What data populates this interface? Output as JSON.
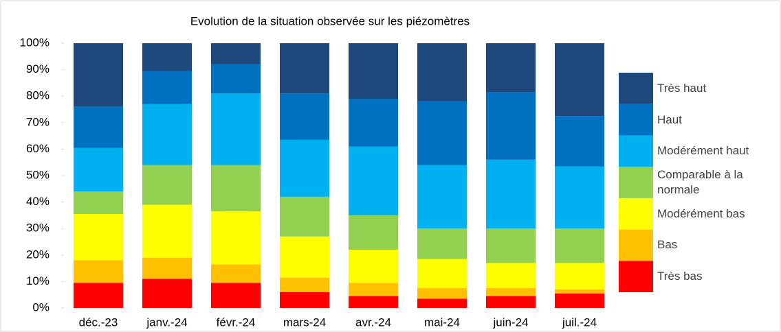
{
  "chart_data": {
    "type": "stacked_bar",
    "title": "Evolution de la situation observée sur les  piézomètres",
    "categories": [
      "déc.-23",
      "janv.-24",
      "févr.-24",
      "mars-24",
      "avr.-24",
      "mai-24",
      "juin-24",
      "juil.-24"
    ],
    "series": [
      {
        "name": "Très bas",
        "color": "#ff0000",
        "values": [
          9.5,
          11,
          9.5,
          6,
          4.5,
          3.5,
          4.5,
          5.5
        ]
      },
      {
        "name": "Bas",
        "color": "#ffc000",
        "values": [
          8.5,
          8,
          7,
          5.5,
          5,
          4,
          3,
          1.5
        ]
      },
      {
        "name": "Modérément bas",
        "color": "#ffff00",
        "values": [
          17.5,
          20,
          20,
          15.5,
          12.5,
          11,
          9.5,
          10
        ]
      },
      {
        "name": "Comparable à la normale",
        "color": "#92d050",
        "values": [
          8.5,
          15,
          17.5,
          15,
          13,
          11.5,
          13,
          13
        ]
      },
      {
        "name": "Modérément haut",
        "color": "#00b0f0",
        "values": [
          16.5,
          23,
          27,
          21.5,
          26,
          24,
          26,
          23.5
        ]
      },
      {
        "name": "Haut",
        "color": "#0070c0",
        "values": [
          15.5,
          12.5,
          11,
          17.5,
          18,
          24,
          25.5,
          19
        ]
      },
      {
        "name": "Très haut",
        "color": "#1f497d",
        "values": [
          24,
          10.5,
          8,
          19,
          21,
          22,
          18.5,
          27.5
        ]
      }
    ],
    "ylim": [
      0,
      100
    ],
    "yticks": [
      {
        "value": 0,
        "label": "0%"
      },
      {
        "value": 10,
        "label": "10%"
      },
      {
        "value": 20,
        "label": "20%"
      },
      {
        "value": 30,
        "label": "30%"
      },
      {
        "value": 40,
        "label": "40%"
      },
      {
        "value": 50,
        "label": "50%"
      },
      {
        "value": 60,
        "label": "60%"
      },
      {
        "value": 70,
        "label": "70%"
      },
      {
        "value": 80,
        "label": "80%"
      },
      {
        "value": 90,
        "label": "90%"
      },
      {
        "value": 100,
        "label": "100%"
      }
    ],
    "grid": false,
    "legend": "right"
  }
}
